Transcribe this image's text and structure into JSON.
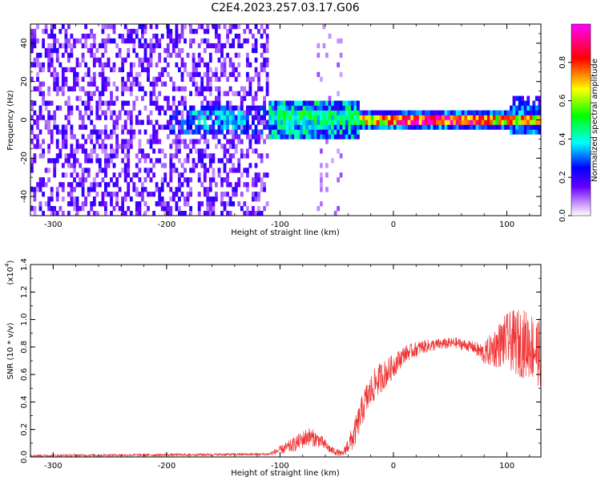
{
  "figure": {
    "title": "C2E4.2023.257.03.17.G06"
  },
  "chart_data": [
    {
      "type": "heatmap",
      "xlabel": "Height of straight line (km)",
      "ylabel": "Frequency (Hz)",
      "xlim": [
        -320,
        130
      ],
      "ylim": [
        -50,
        50
      ],
      "xticks": [
        -300,
        -200,
        -100,
        0,
        100
      ],
      "yticks": [
        -40,
        -20,
        0,
        20,
        40
      ],
      "colorbar": {
        "label": "Normalized spectral amplitude",
        "range": [
          0.0,
          1.0
        ],
        "ticks": [
          0.0,
          0.2,
          0.4,
          0.6,
          0.8
        ],
        "colormap": "rainbow (white-violet-blue-cyan-green-yellow-red-magenta)"
      },
      "features": [
        {
          "x_range": [
            -320,
            -110
          ],
          "description": "broadband violet noise across all frequencies"
        },
        {
          "x_range": [
            -110,
            -30
          ],
          "frequency_center": 0,
          "amplitude": "cyan-green band around 0 Hz"
        },
        {
          "x_range": [
            -30,
            130
          ],
          "frequency_center": 0,
          "amplitude": "narrow yellow-red line at 0 Hz"
        }
      ]
    },
    {
      "type": "line",
      "xlabel": "Height of straight line (km)",
      "ylabel": "SNR (10 * v/v)",
      "y_multiplier": "(x10",
      "y_multiplier_exp": "4",
      "y_multiplier_close": ")",
      "xlim": [
        -320,
        130
      ],
      "ylim": [
        0.0,
        1.4
      ],
      "xticks": [
        -300,
        -200,
        -100,
        0,
        100
      ],
      "yticks": [
        "0.0",
        "0.2",
        "0.4",
        "0.6",
        "0.8",
        "1.0",
        "1.2",
        "1.4"
      ],
      "color": "#ee3333",
      "series_envelope": {
        "x": [
          -320,
          -200,
          -110,
          -90,
          -75,
          -65,
          -55,
          -45,
          -35,
          -25,
          -15,
          -5,
          10,
          25,
          40,
          55,
          70,
          80,
          90,
          100,
          110,
          120,
          130
        ],
        "y": [
          0.01,
          0.015,
          0.02,
          0.08,
          0.15,
          0.12,
          0.05,
          0.02,
          0.15,
          0.4,
          0.55,
          0.62,
          0.75,
          0.8,
          0.82,
          0.83,
          0.8,
          0.75,
          0.8,
          0.85,
          0.83,
          0.82,
          0.75
        ],
        "noise_amplitude": [
          0.008,
          0.01,
          0.01,
          0.05,
          0.07,
          0.05,
          0.03,
          0.02,
          0.1,
          0.12,
          0.12,
          0.1,
          0.06,
          0.05,
          0.04,
          0.04,
          0.04,
          0.08,
          0.15,
          0.2,
          0.25,
          0.25,
          0.25
        ]
      }
    }
  ]
}
